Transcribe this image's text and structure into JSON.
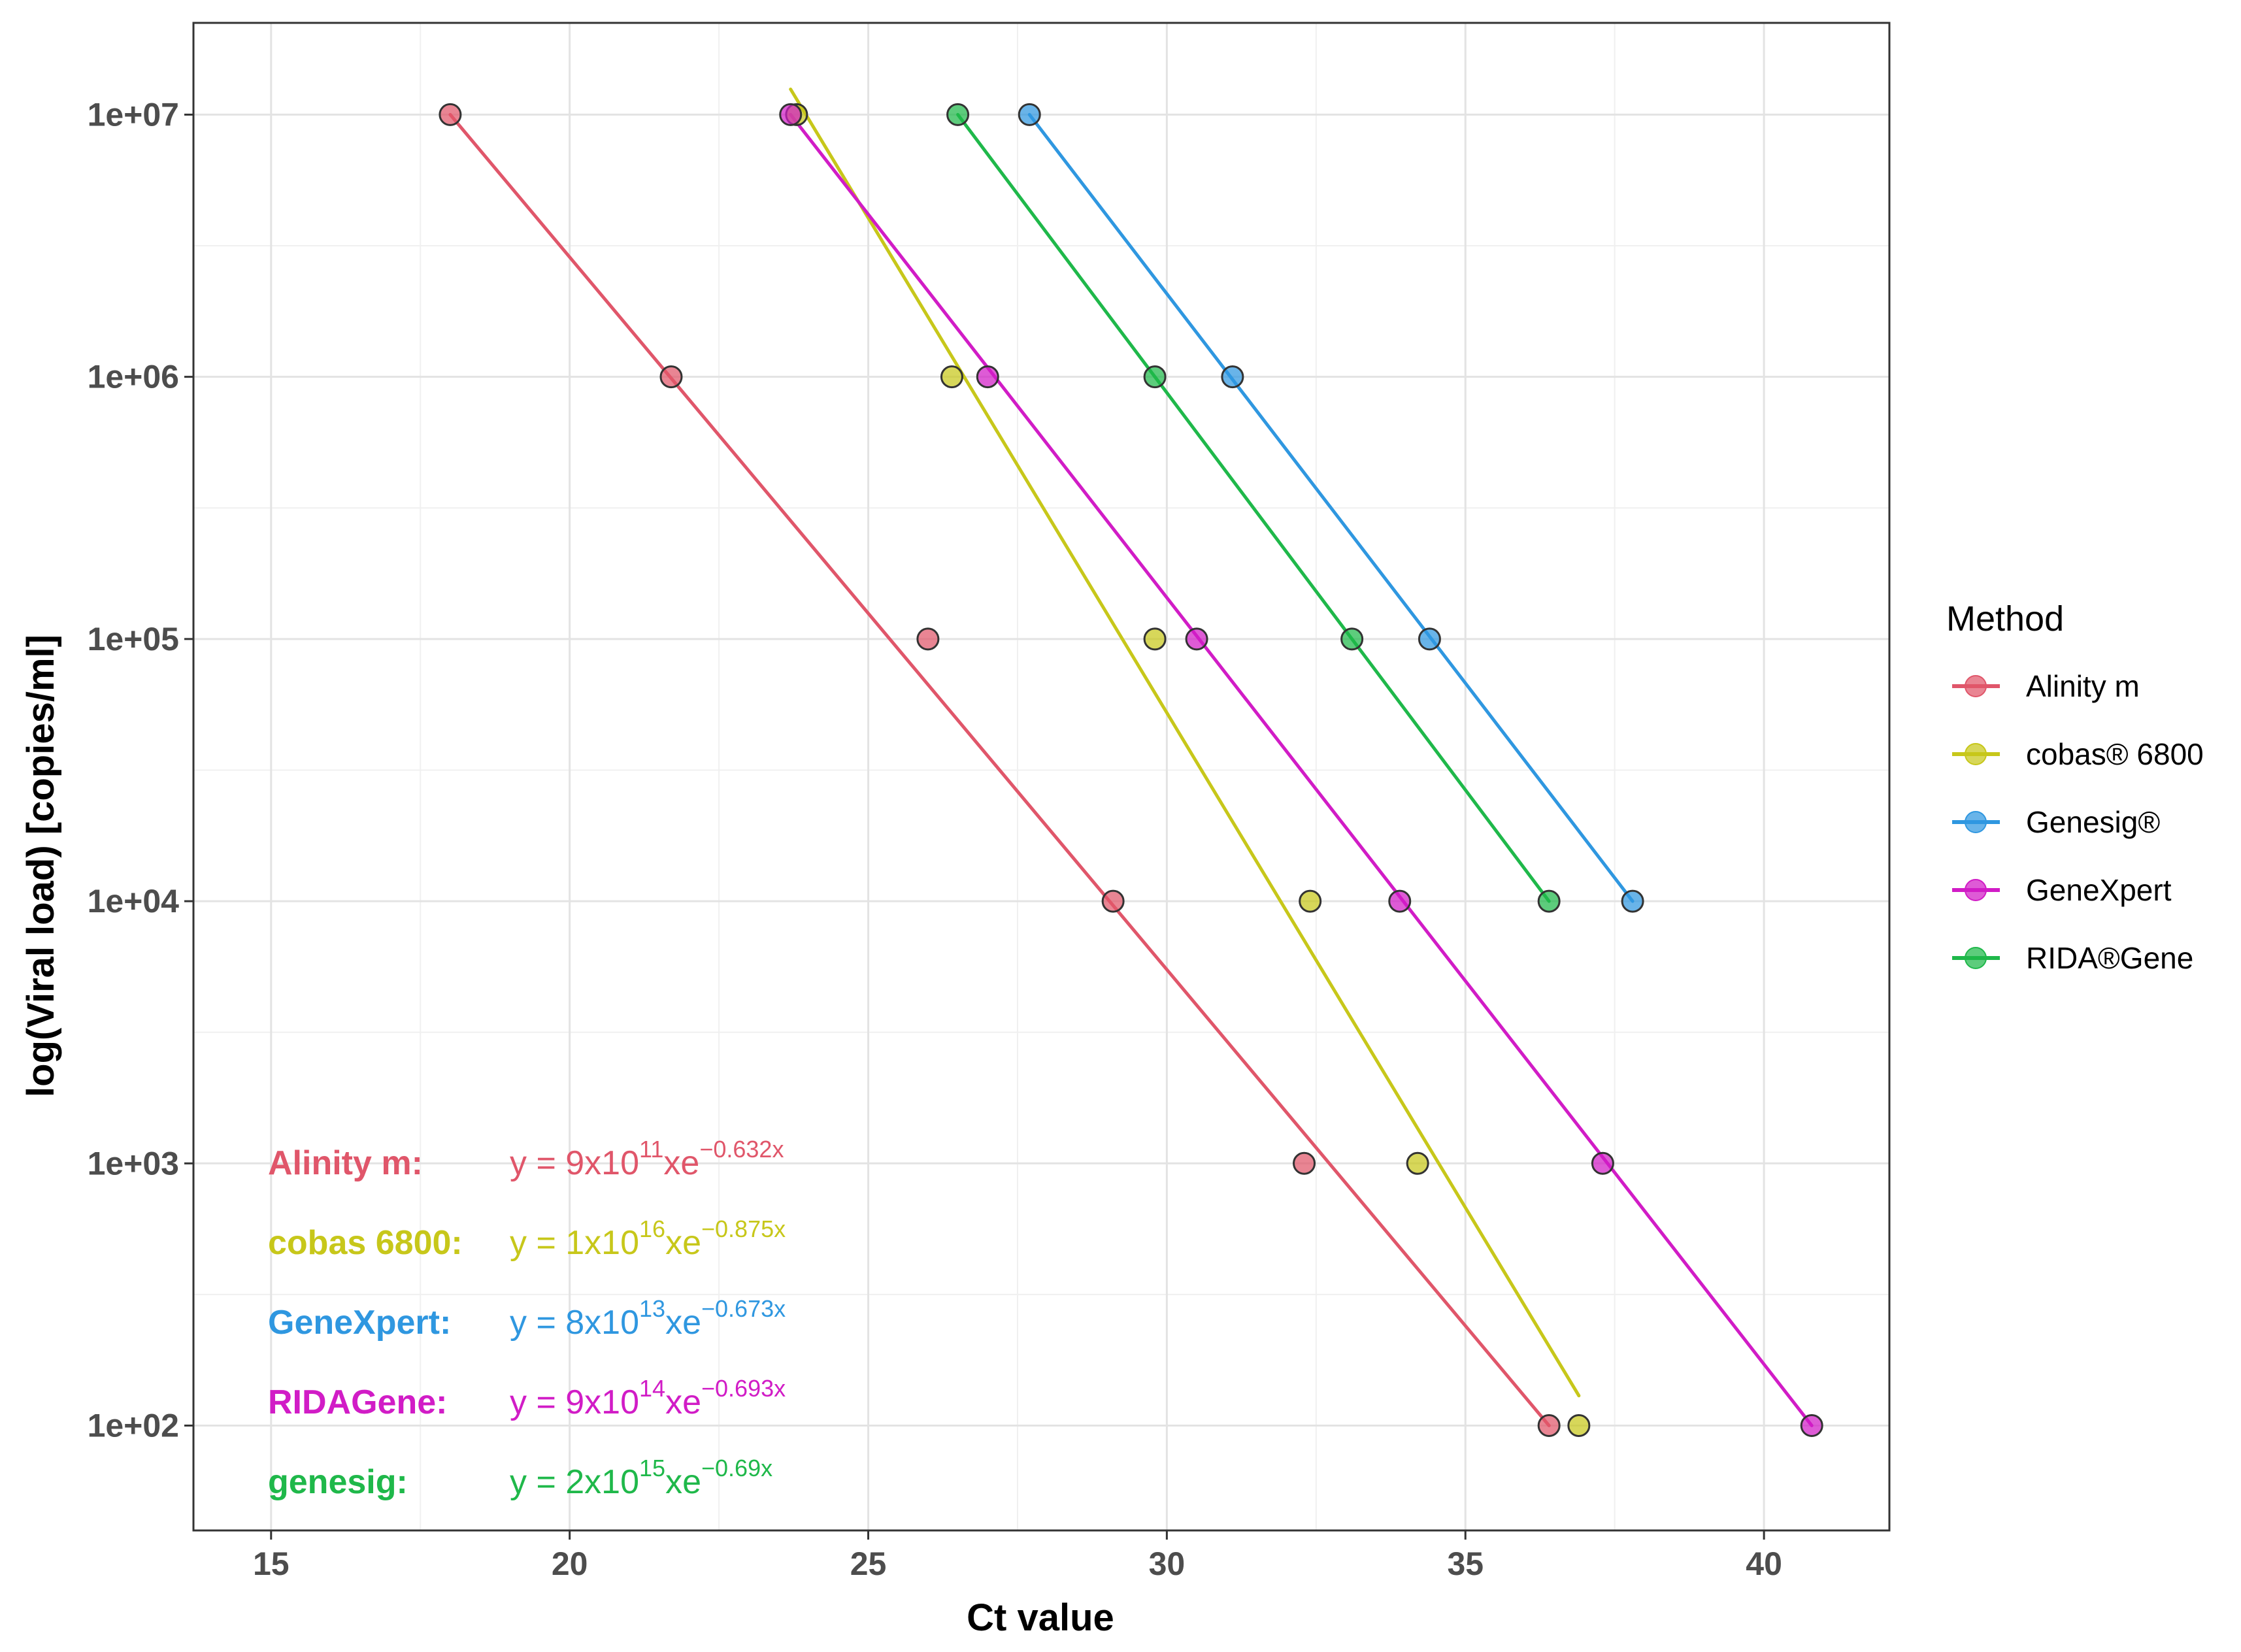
{
  "chart_data": {
    "type": "scatter",
    "xlabel": "Ct value",
    "ylabel": "log(Viral load) [copies/ml]",
    "xlim": [
      13.7,
      42.1
    ],
    "ylim_log10": [
      1.6,
      7.35
    ],
    "x_scale": "linear",
    "y_scale": "log10",
    "x_ticks": [
      15,
      20,
      25,
      30,
      35,
      40
    ],
    "x_tick_labels": [
      "15",
      "20",
      "25",
      "30",
      "35",
      "40"
    ],
    "y_ticks": [
      100,
      1000,
      10000,
      100000,
      1000000,
      10000000
    ],
    "y_tick_labels": [
      "1e+02",
      "1e+03",
      "1e+04",
      "1e+05",
      "1e+06",
      "1e+07"
    ],
    "grid": true,
    "legend": {
      "title": "Method",
      "position": "right"
    },
    "series": [
      {
        "name": "Alinity m",
        "color": "#E0566A",
        "points": [
          {
            "x": 18.0,
            "y": 10000000
          },
          {
            "x": 21.7,
            "y": 1000000
          },
          {
            "x": 26.0,
            "y": 100000
          },
          {
            "x": 29.1,
            "y": 10000
          },
          {
            "x": 32.3,
            "y": 1000
          },
          {
            "x": 36.4,
            "y": 100
          }
        ],
        "fit_line": [
          [
            18.0,
            10000000
          ],
          [
            36.4,
            100
          ]
        ]
      },
      {
        "name": "cobas® 6800",
        "color": "#C7C71A",
        "points": [
          {
            "x": 23.8,
            "y": 10000000
          },
          {
            "x": 26.4,
            "y": 1000000
          },
          {
            "x": 29.8,
            "y": 100000
          },
          {
            "x": 32.4,
            "y": 10000
          },
          {
            "x": 34.2,
            "y": 1000
          },
          {
            "x": 36.9,
            "y": 100
          }
        ],
        "fit_line": [
          [
            23.7,
            12500000
          ],
          [
            36.9,
            130
          ]
        ]
      },
      {
        "name": "Genesig®",
        "color": "#2F97E0",
        "points": [
          {
            "x": 27.7,
            "y": 10000000
          },
          {
            "x": 31.1,
            "y": 1000000
          },
          {
            "x": 34.4,
            "y": 100000
          },
          {
            "x": 37.8,
            "y": 10000
          }
        ],
        "fit_line": [
          [
            27.7,
            10000000
          ],
          [
            37.8,
            10000
          ]
        ]
      },
      {
        "name": "GeneXpert",
        "color": "#D11CC6",
        "points": [
          {
            "x": 23.7,
            "y": 10000000
          },
          {
            "x": 27.0,
            "y": 1000000
          },
          {
            "x": 30.5,
            "y": 100000
          },
          {
            "x": 33.9,
            "y": 10000
          },
          {
            "x": 37.3,
            "y": 1000
          },
          {
            "x": 40.8,
            "y": 100
          }
        ],
        "fit_line": [
          [
            23.7,
            10000000
          ],
          [
            40.8,
            100
          ]
        ]
      },
      {
        "name": "RIDA®Gene",
        "color": "#1FB84A",
        "points": [
          {
            "x": 26.5,
            "y": 10000000
          },
          {
            "x": 29.8,
            "y": 1000000
          },
          {
            "x": 33.1,
            "y": 100000
          },
          {
            "x": 36.4,
            "y": 10000
          }
        ],
        "fit_line": [
          [
            26.5,
            10000000
          ],
          [
            36.4,
            10000
          ]
        ]
      }
    ],
    "annotations": [
      {
        "name": "Alinity m:",
        "eq_prefix": "y = 9x10",
        "eq_exp1": "11",
        "eq_mid": "xe",
        "eq_exp2": "−0.632x",
        "color": "#E0566A"
      },
      {
        "name": "cobas 6800:",
        "eq_prefix": "y = 1x10",
        "eq_exp1": "16",
        "eq_mid": "xe",
        "eq_exp2": "−0.875x",
        "color": "#C7C71A"
      },
      {
        "name": "GeneXpert:",
        "eq_prefix": "y = 8x10",
        "eq_exp1": "13",
        "eq_mid": "xe",
        "eq_exp2": "−0.673x",
        "color": "#2F97E0"
      },
      {
        "name": "RIDAGene:",
        "eq_prefix": "y = 9x10",
        "eq_exp1": "14",
        "eq_mid": "xe",
        "eq_exp2": "−0.693x",
        "color": "#D11CC6"
      },
      {
        "name": "genesig:",
        "eq_prefix": "y = 2x10",
        "eq_exp1": "15",
        "eq_mid": "xe",
        "eq_exp2": "−0.69x",
        "color": "#1FB84A"
      }
    ]
  }
}
